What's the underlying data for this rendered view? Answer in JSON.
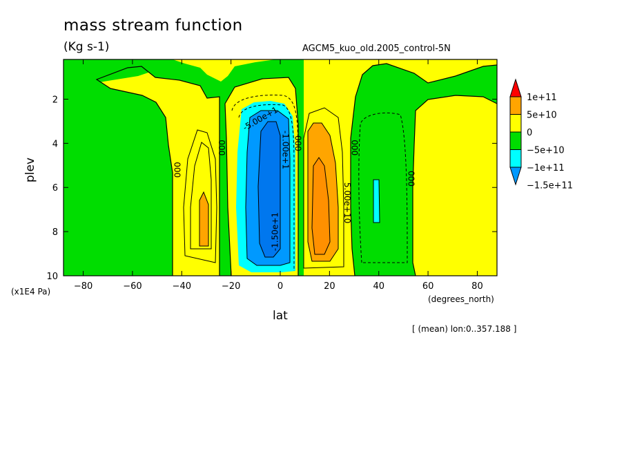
{
  "chart_data": {
    "type": "contour",
    "title": "mass stream function",
    "subtitle": "(Kg s-1)",
    "dataset_label": "AGCM5_kuo_old.2005_control-5N",
    "xlabel": "lat",
    "ylabel": "plev",
    "x_units": "(degrees_north)",
    "y_units": "(x1E4 Pa)",
    "averaging_note": "[ (mean) lon:0..357.188 ]",
    "xlim": [
      -88,
      88
    ],
    "ylim": [
      0.2,
      10
    ],
    "y_inverted": true,
    "x_ticks": [
      -80,
      -60,
      -40,
      -20,
      0,
      20,
      40,
      60,
      80
    ],
    "y_ticks": [
      2,
      4,
      6,
      8,
      10
    ],
    "legend": {
      "placement": "right",
      "labels": [
        "1e+11",
        "5e+10",
        "0",
        "-5e+10",
        "-1e+11",
        "-1.5e+11"
      ],
      "colors": [
        "#ff0000",
        "#ffa500",
        "#ffff00",
        "#00dd00",
        "#00ffff",
        "#0099ff"
      ]
    },
    "contour_labels": [
      {
        "text": "-5.00e+1",
        "x": -8,
        "y": 2.9,
        "angle": -30
      },
      {
        "text": "-1.00e+1",
        "x": 2,
        "y": 4.3,
        "angle": 90
      },
      {
        "text": "-1.50e+1",
        "x": -2,
        "y": 8.0,
        "angle": -90
      },
      {
        "text": "5.00e+10",
        "x": 27,
        "y": 6.7,
        "angle": 90
      },
      {
        "text": "000",
        "x": -42,
        "y": 5.2,
        "angle": 90
      },
      {
        "text": "000",
        "x": -24,
        "y": 4.2,
        "angle": 90
      },
      {
        "text": "000",
        "x": 7,
        "y": 4.0,
        "angle": 90
      },
      {
        "text": "000",
        "x": 30,
        "y": 4.2,
        "angle": 90
      },
      {
        "text": "000",
        "x": 53,
        "y": 5.6,
        "angle": 90
      }
    ]
  }
}
